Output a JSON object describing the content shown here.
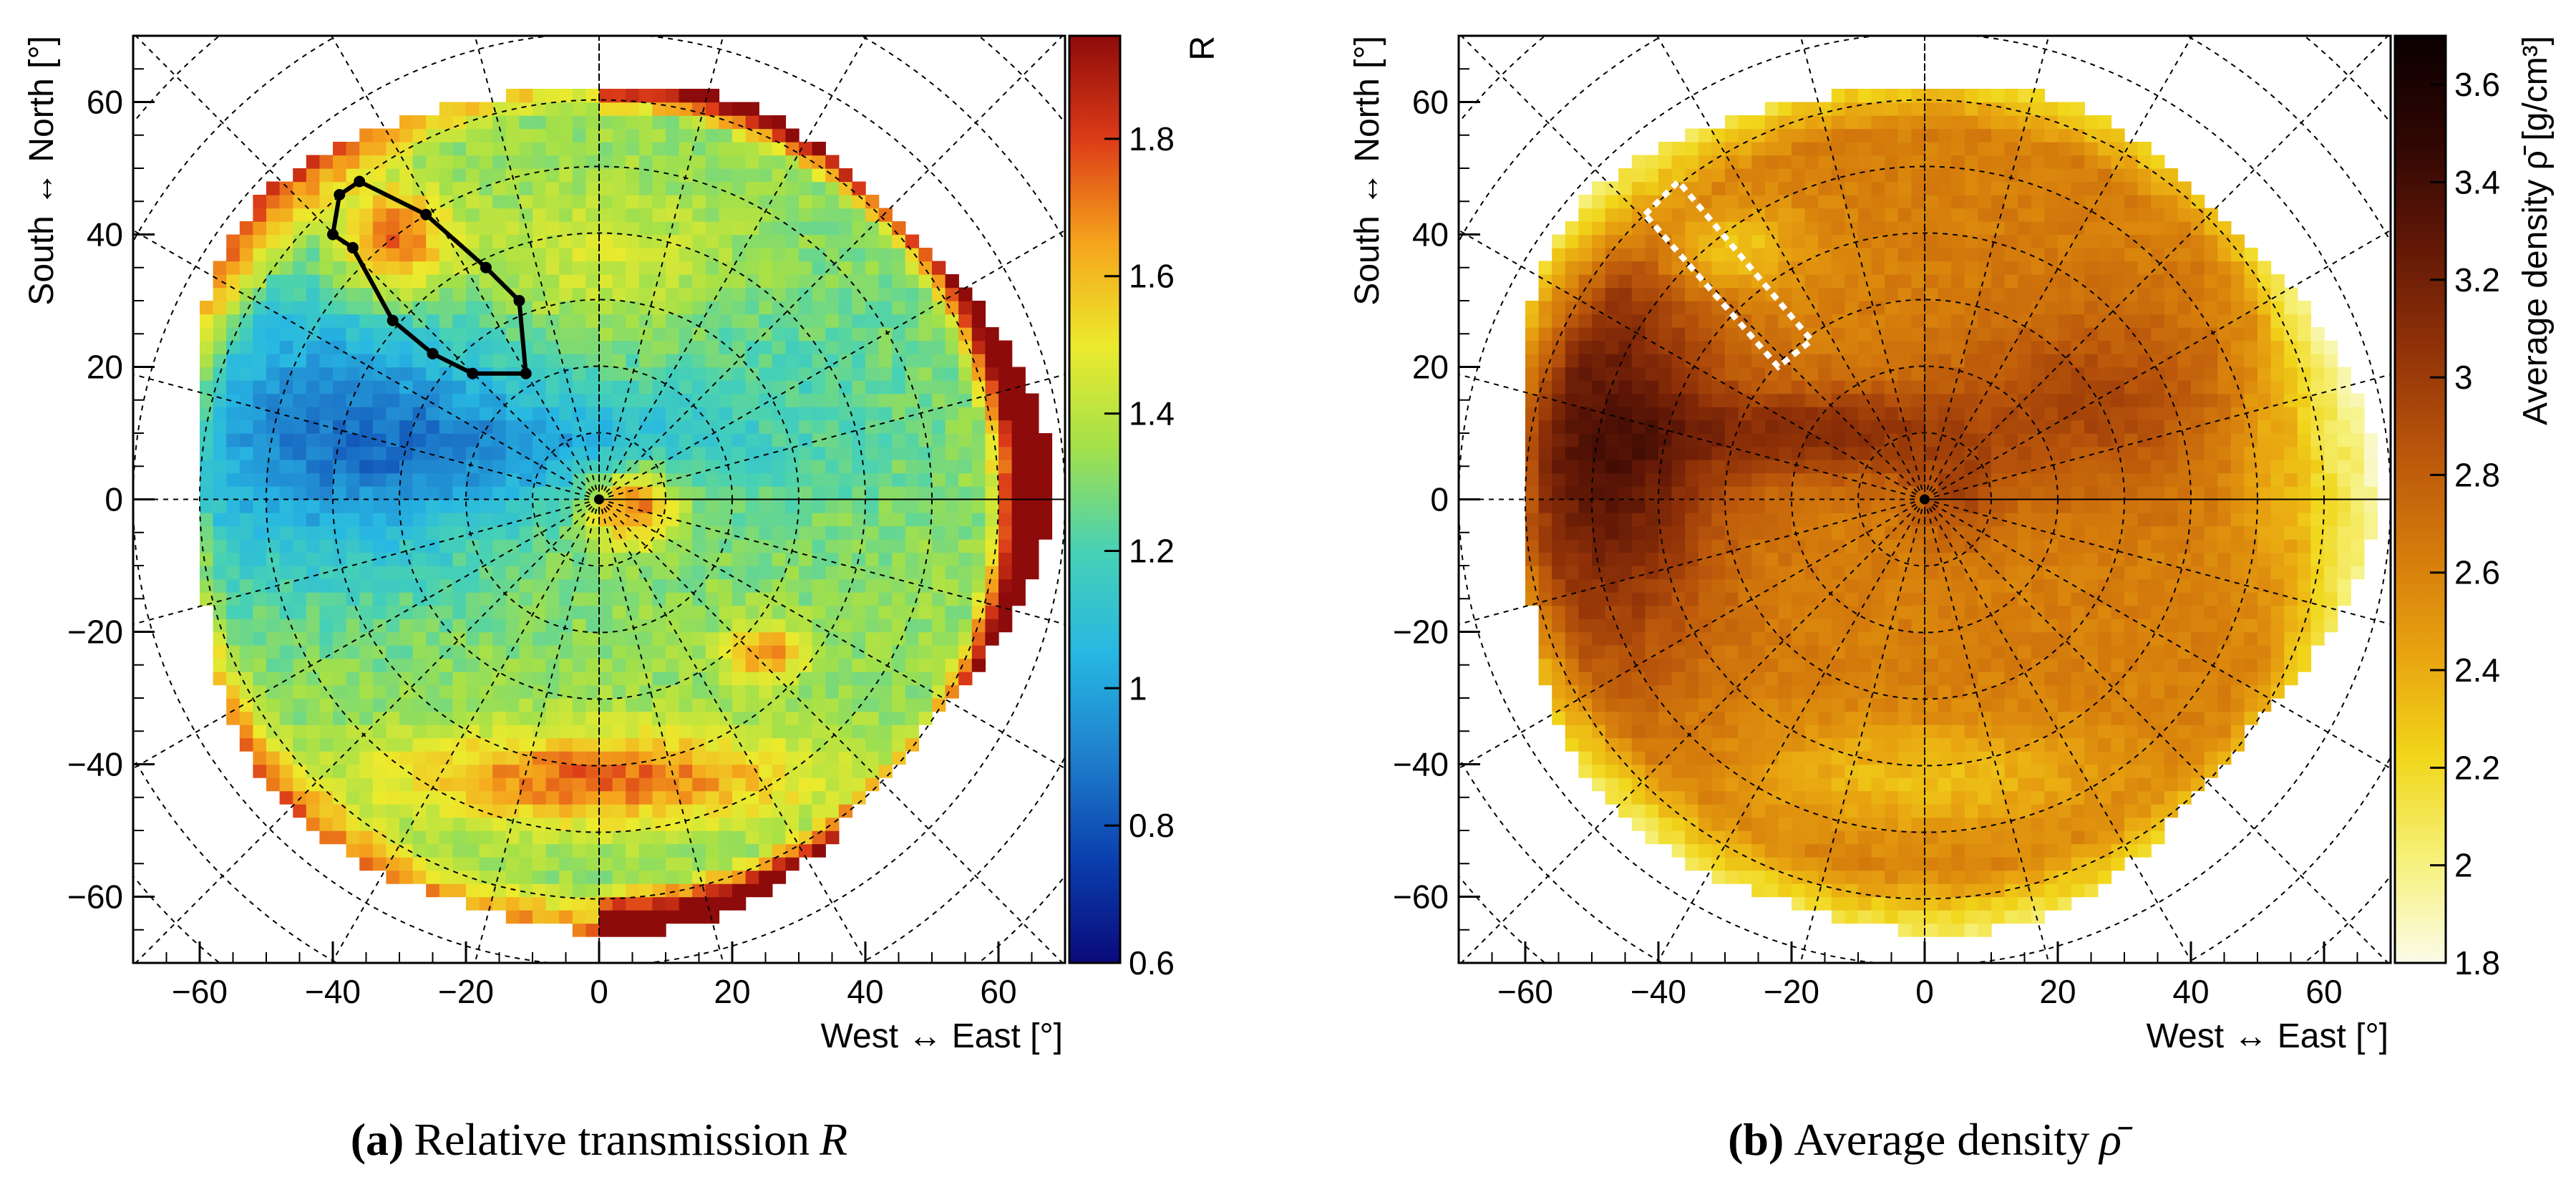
{
  "chart_data": [
    {
      "type": "heatmap",
      "panel_letter": "a",
      "panel_letter_display": "(a)",
      "caption": "(a) Relative transmission R",
      "caption_text": "Relative transmission",
      "caption_symbol": "R",
      "xlabel": "West ↔ East [°]",
      "ylabel": "South ↔ North [°]",
      "xlim": [
        -70,
        70
      ],
      "ylim": [
        -70,
        70
      ],
      "xticks": [
        -60,
        -40,
        -20,
        0,
        20,
        40,
        60
      ],
      "yticks": [
        -60,
        -40,
        -20,
        0,
        20,
        40,
        60
      ],
      "polar_grid": {
        "radii_deg": [
          10,
          20,
          30,
          40,
          50,
          60,
          70,
          80,
          90
        ],
        "spoke_step_deg": 15
      },
      "colorbar": {
        "label": "R",
        "min": 0.6,
        "max": 1.95,
        "ticks": [
          0.6,
          0.8,
          1.0,
          1.2,
          1.4,
          1.6,
          1.8
        ],
        "tick_labels": [
          "0.6",
          "0.8",
          "1",
          "1.2",
          "1.4",
          "1.6",
          "1.8"
        ],
        "colormap": [
          "#0a0a7a",
          "#0a3fae",
          "#1f7fcc",
          "#27b7e3",
          "#47d1b5",
          "#a3e04a",
          "#ecea2d",
          "#f5a31c",
          "#dc3b18",
          "#8e0b0b"
        ]
      },
      "approx_regions": [
        {
          "name": "rim",
          "value": 1.95,
          "note": "outer ring near r≈60–66° (east rim strongest)"
        },
        {
          "name": "west_low",
          "value": 0.9,
          "center": [
            -40,
            10
          ]
        },
        {
          "name": "centre_peak",
          "value": 1.9,
          "center": [
            5,
            0
          ]
        },
        {
          "name": "south_band",
          "value": 1.75,
          "center": [
            0,
            -42
          ]
        },
        {
          "name": "east_spot",
          "value": 1.75,
          "center": [
            25,
            -23
          ]
        },
        {
          "name": "nw_outlined",
          "value": 1.8,
          "center": [
            -32,
            40
          ]
        }
      ],
      "outline_polygon": [
        [
          -39,
          46
        ],
        [
          -36,
          48
        ],
        [
          -26,
          43
        ],
        [
          -17,
          35
        ],
        [
          -12,
          30
        ],
        [
          -11,
          19
        ],
        [
          -19,
          19
        ],
        [
          -25,
          22
        ],
        [
          -31,
          27
        ],
        [
          -37,
          38
        ],
        [
          -40,
          40
        ]
      ]
    },
    {
      "type": "heatmap",
      "panel_letter": "b",
      "panel_letter_display": "(b)",
      "caption": "(b) Average density ρ̄",
      "caption_text": "Average density",
      "caption_symbol": "ρ̄",
      "xlabel": "West ↔ East [°]",
      "ylabel": "South ↔ North [°]",
      "xlim": [
        -70,
        70
      ],
      "ylim": [
        -70,
        70
      ],
      "xticks": [
        -60,
        -40,
        -20,
        0,
        20,
        40,
        60
      ],
      "yticks": [
        -60,
        -40,
        -20,
        0,
        20,
        40,
        60
      ],
      "polar_grid": {
        "radii_deg": [
          10,
          20,
          30,
          40,
          50,
          60,
          70,
          80,
          90
        ],
        "spoke_step_deg": 15
      },
      "colorbar": {
        "label": "Average density ρ̄ [g/cm³]",
        "min": 1.8,
        "max": 3.7,
        "ticks": [
          1.8,
          2.0,
          2.2,
          2.4,
          2.6,
          2.8,
          3.0,
          3.2,
          3.4,
          3.6
        ],
        "tick_labels": [
          "1.8",
          "2",
          "2.2",
          "2.4",
          "2.6",
          "2.8",
          "3",
          "3.2",
          "3.4",
          "3.6"
        ],
        "colormap": [
          "#fbfbe8",
          "#f6f17a",
          "#f1d61a",
          "#e8a310",
          "#d47a0c",
          "#b8540b",
          "#8f3108",
          "#601706",
          "#2e0603",
          "#0a0000"
        ]
      },
      "approx_regions": [
        {
          "name": "base",
          "value": 2.65
        },
        {
          "name": "west_dense",
          "value": 3.35,
          "center": [
            -48,
            8
          ]
        },
        {
          "name": "diagonal_ridge",
          "value": 3.1,
          "center": [
            -15,
            10
          ]
        },
        {
          "name": "south_light",
          "value": 2.35,
          "center": [
            0,
            -42
          ]
        },
        {
          "name": "nw_light",
          "value": 2.2,
          "center": [
            -30,
            38
          ]
        },
        {
          "name": "east_rim_light",
          "value": 2.25,
          "center": [
            55,
            10
          ]
        }
      ],
      "dashed_box": [
        [
          -42,
          43
        ],
        [
          -37,
          48
        ],
        [
          -17,
          24
        ],
        [
          -22,
          20
        ]
      ]
    }
  ]
}
